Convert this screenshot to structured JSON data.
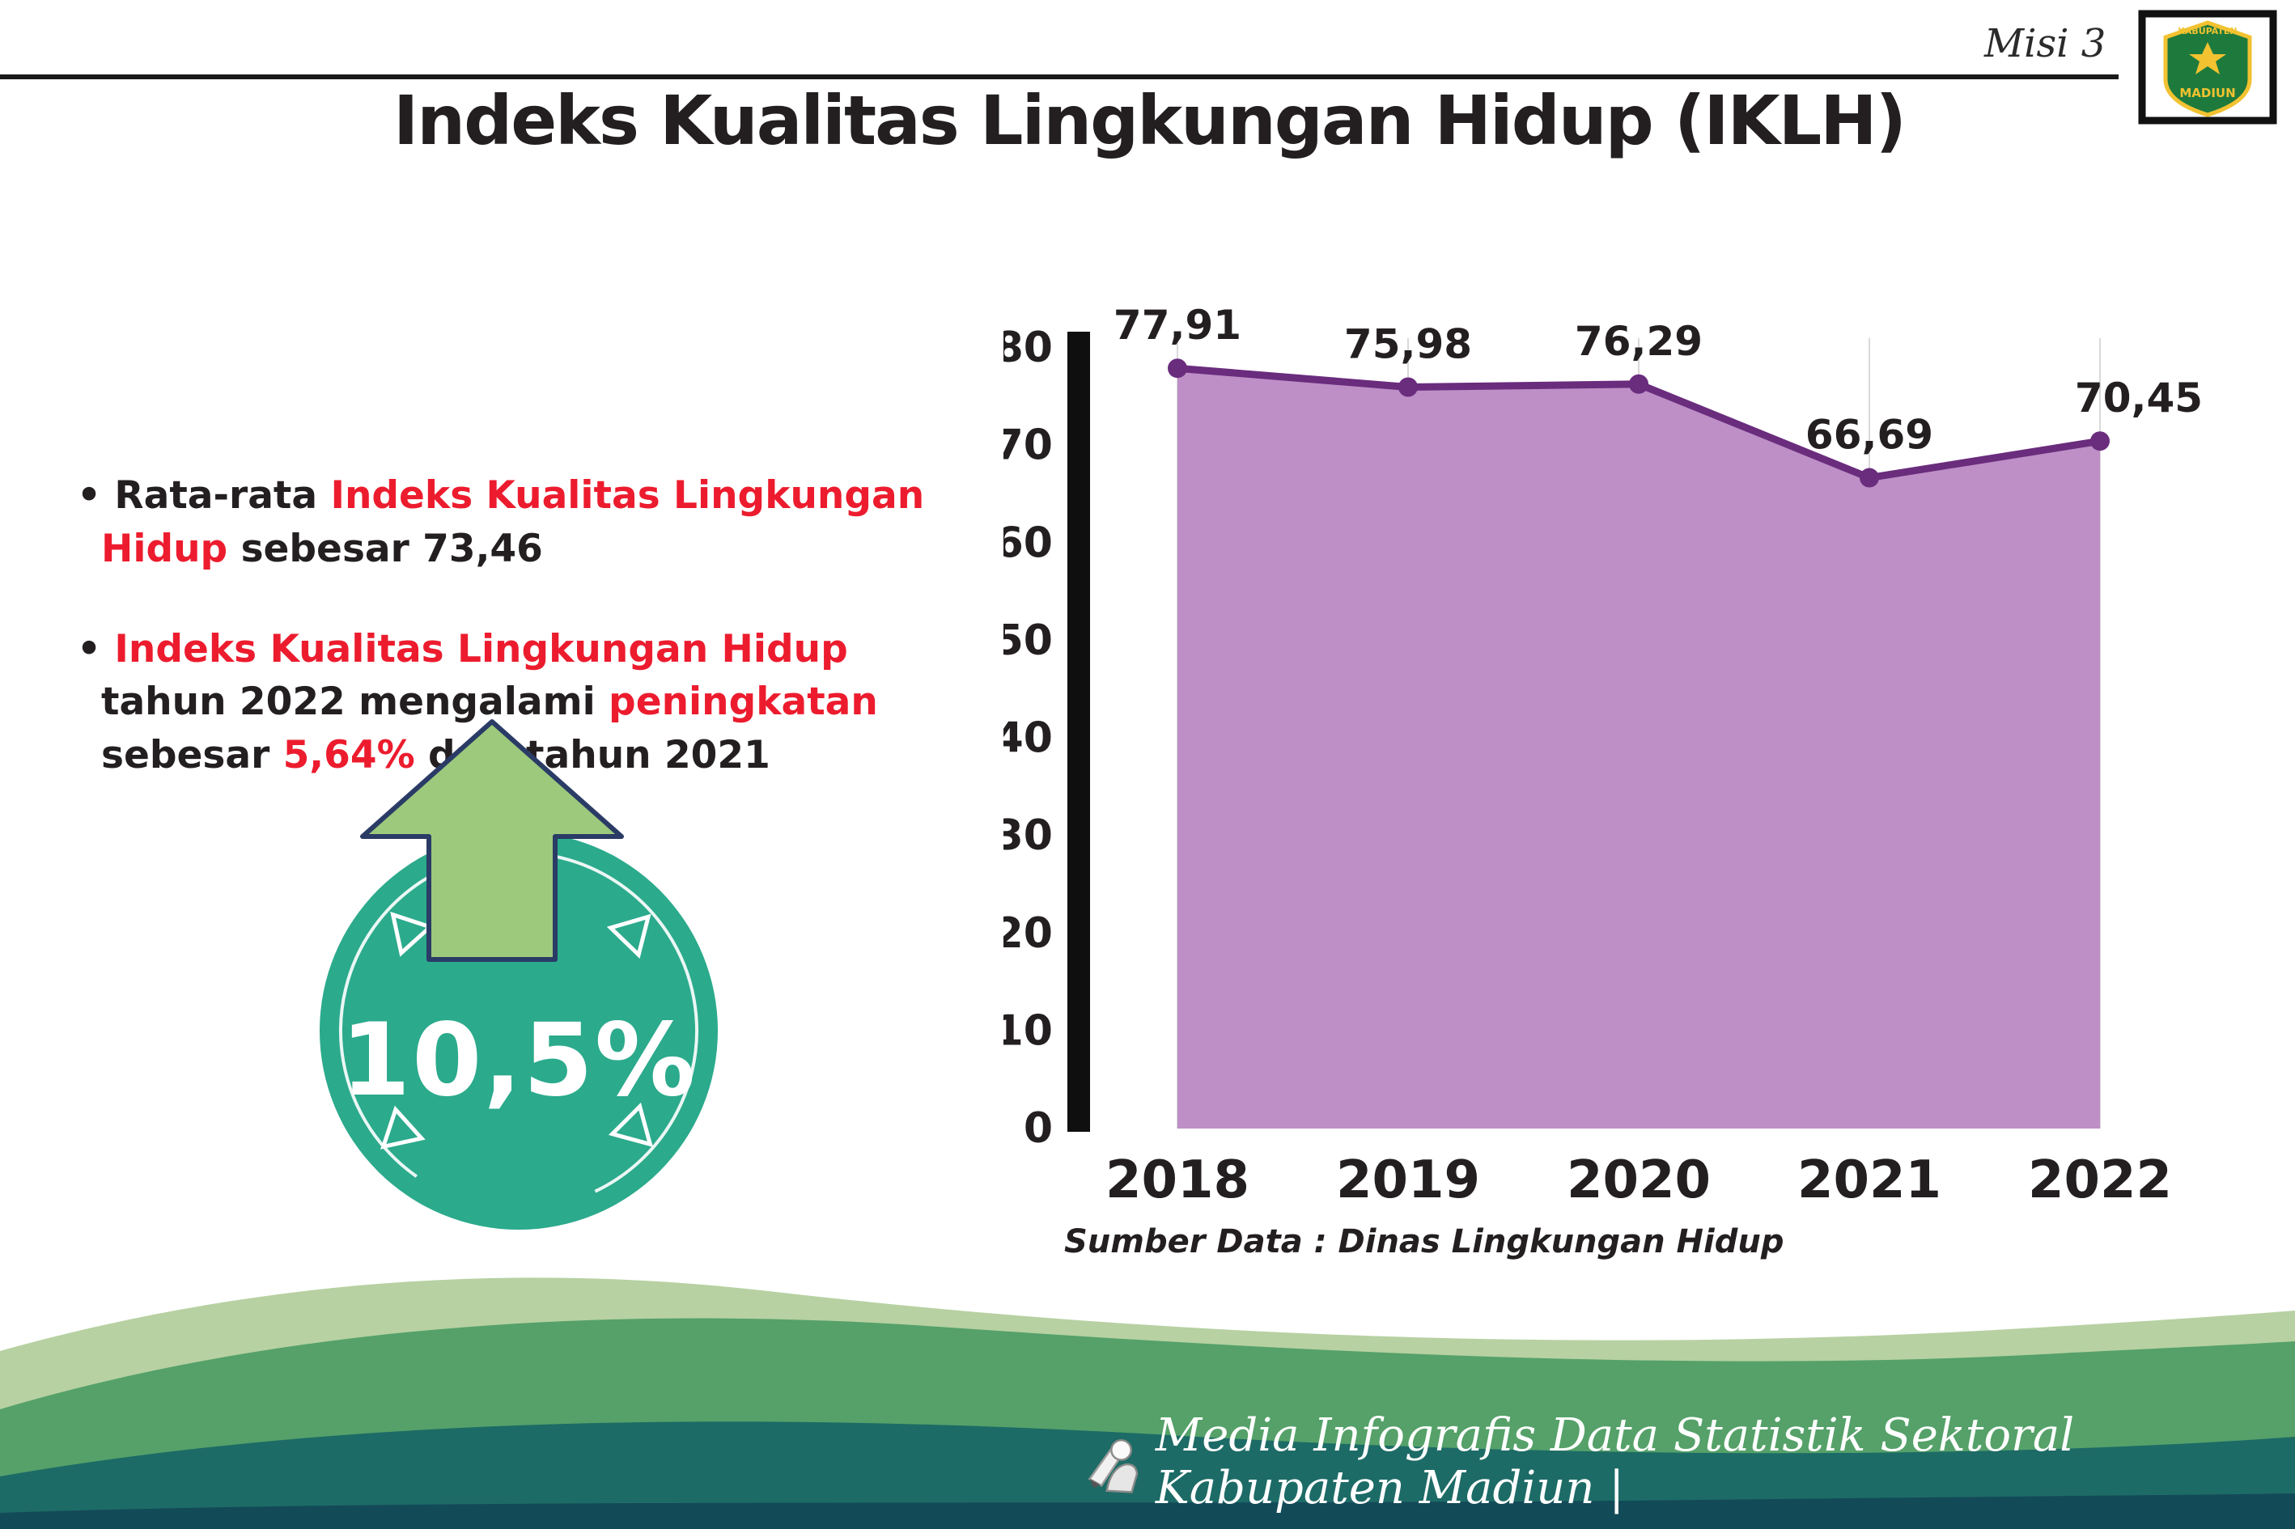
{
  "palette": {
    "text": "#231f20",
    "red": "#ec1c2e",
    "teal_circle": "#2baa8c",
    "arrow_green": "#9cc97c",
    "arrow_outline": "#2a3b66",
    "area_fill": "#bd8fc6",
    "line_purple": "#6a2c7d",
    "gridline": "#d9d9d9",
    "axis_black": "#0f0f0f",
    "footer_text": "#ffffff"
  },
  "header": {
    "misi_label": "Misi 3",
    "title": "Indeks Kualitas Lingkungan Hidup (IKLH)",
    "logo_top": "KABUPATEN",
    "logo_bottom": "MADIUN"
  },
  "bullets": [
    {
      "segments": [
        {
          "text": "Rata-rata ",
          "color": "text"
        },
        {
          "text": "Indeks Kualitas Lingkungan Hidup",
          "color": "red"
        },
        {
          "text": " sebesar 73,46",
          "color": "text"
        }
      ]
    },
    {
      "segments": [
        {
          "text": "Indeks Kualitas Lingkungan Hidup",
          "color": "red"
        },
        {
          "text": " tahun 2022 mengalami ",
          "color": "text"
        },
        {
          "text": "peningkatan",
          "color": "red"
        },
        {
          "text": " sebesar ",
          "color": "text"
        },
        {
          "text": "5,64%",
          "color": "red"
        },
        {
          "text": " dari tahun 2021",
          "color": "text"
        }
      ]
    }
  ],
  "badge": {
    "value": "10,5%"
  },
  "chart_data": {
    "type": "area",
    "title": "",
    "categories": [
      "2018",
      "2019",
      "2020",
      "2021",
      "2022"
    ],
    "values": [
      77.91,
      75.98,
      76.29,
      66.69,
      70.45
    ],
    "value_labels": [
      "77,91",
      "75,98",
      "76,29",
      "66,69",
      "70,45"
    ],
    "ylim": [
      0,
      80
    ],
    "ytick_step": 10,
    "grid": "vertical",
    "legend": "none",
    "source": "Sumber Data : Dinas Lingkungan Hidup"
  },
  "footer": {
    "text": "Media Infografis Data Statistik Sektoral Kabupaten Madiun |"
  }
}
